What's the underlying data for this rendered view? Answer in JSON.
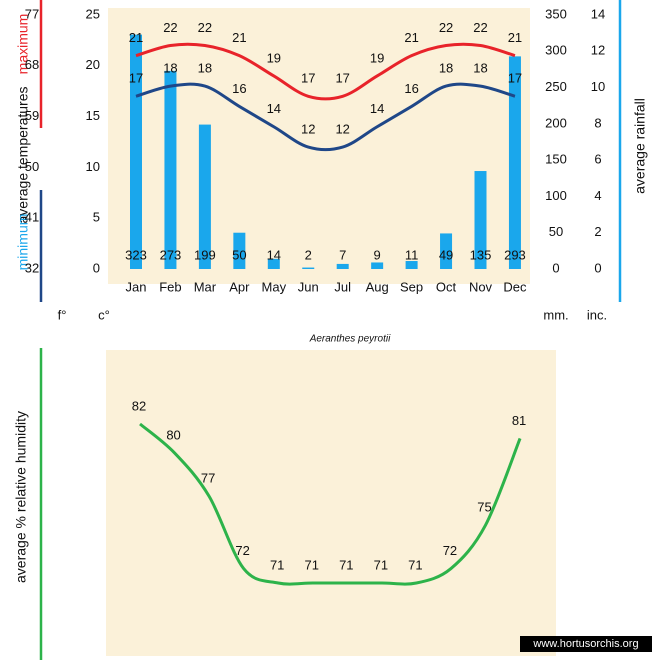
{
  "chart_data": [
    {
      "type": "combo",
      "caption": "Aeranthes peyrotii",
      "categories": [
        "Jan",
        "Feb",
        "Mar",
        "Apr",
        "May",
        "Jun",
        "Jul",
        "Aug",
        "Sep",
        "Oct",
        "Nov",
        "Dec"
      ],
      "ylabel": "average temperatures",
      "y2label": "average rainfall",
      "ylim": [
        0,
        25
      ],
      "yticks": [
        0,
        5,
        10,
        15,
        20,
        25
      ],
      "y2lim": [
        0,
        350
      ],
      "y2ticks": [
        0,
        50,
        100,
        150,
        200,
        250,
        300,
        350
      ],
      "fahrenheit_lim": [
        32,
        77
      ],
      "fahrenheit_ticks": [
        32,
        41,
        50,
        59,
        68,
        77
      ],
      "inch_lim": [
        0,
        14
      ],
      "inch_ticks": [
        0,
        2,
        4,
        6,
        8,
        10,
        12,
        14
      ],
      "unit_labels": [
        "f°",
        "c°",
        "mm.",
        "inc."
      ],
      "series": [
        {
          "color": "#1aa7ec",
          "axis": "y2",
          "kind": "bar",
          "values": [
            323,
            273,
            199,
            50,
            14,
            2,
            7,
            9,
            11,
            49,
            135,
            293
          ]
        },
        {
          "name": "maximum",
          "color": "#e8232a",
          "kind": "line",
          "values": [
            21,
            22,
            22,
            21,
            19,
            17,
            17,
            19,
            21,
            22,
            22,
            21
          ]
        },
        {
          "name": "minimum",
          "color": "#1f4788",
          "kind": "line",
          "values": [
            17,
            18,
            18,
            16,
            14,
            12,
            12,
            14,
            16,
            18,
            18,
            17
          ]
        }
      ]
    },
    {
      "type": "line",
      "ylabel": "average %  relative humidity",
      "color": "#2db34a",
      "values": [
        82,
        80,
        77,
        72,
        71,
        71,
        71,
        71,
        71,
        72,
        75,
        81
      ],
      "watermark": "www.hortusorchis.org"
    }
  ]
}
